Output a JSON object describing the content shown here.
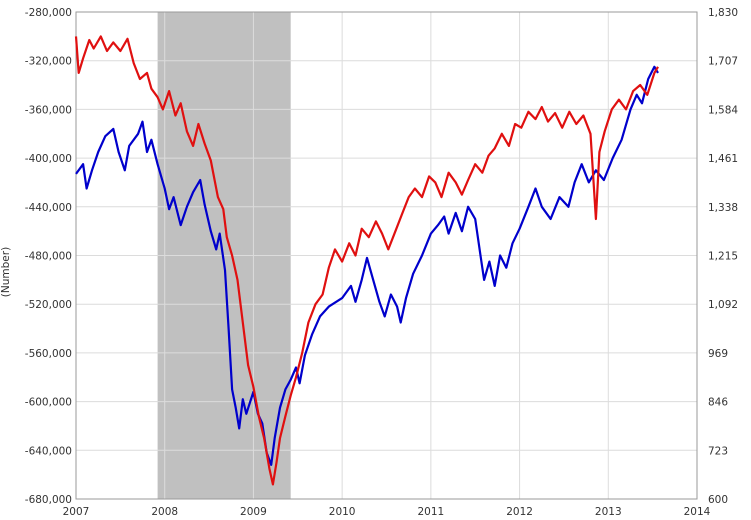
{
  "chart_data": {
    "type": "line",
    "title": "",
    "ylabel_left": "(Number)",
    "ylabel_right": "",
    "x_ticks": [
      "2007",
      "2008",
      "2009",
      "2010",
      "2011",
      "2012",
      "2013",
      "2014"
    ],
    "xlim": [
      2007,
      2014
    ],
    "y_left_ticks": [
      "-280,000",
      "-320,000",
      "-360,000",
      "-400,000",
      "-440,000",
      "-480,000",
      "-520,000",
      "-560,000",
      "-600,000",
      "-640,000",
      "-680,000"
    ],
    "ylim_left": [
      -680000,
      -280000
    ],
    "y_right_ticks": [
      "1,830",
      "1,707",
      "1,584",
      "1,461",
      "1,338",
      "1,215",
      "1,092",
      "969",
      "846",
      "723",
      "600"
    ],
    "ylim_right": [
      600,
      1830
    ],
    "grid": true,
    "recession_shading": {
      "start": 2007.92,
      "end": 2009.42,
      "color": "#c0c0c0"
    },
    "series": [
      {
        "color": "#0000cc",
        "axis": "left",
        "points": [
          [
            2007.0,
            -413000
          ],
          [
            2007.08,
            -405000
          ],
          [
            2007.12,
            -425000
          ],
          [
            2007.18,
            -410000
          ],
          [
            2007.25,
            -395000
          ],
          [
            2007.33,
            -382000
          ],
          [
            2007.42,
            -376000
          ],
          [
            2007.48,
            -395000
          ],
          [
            2007.55,
            -410000
          ],
          [
            2007.6,
            -390000
          ],
          [
            2007.7,
            -380000
          ],
          [
            2007.75,
            -370000
          ],
          [
            2007.8,
            -395000
          ],
          [
            2007.85,
            -385000
          ],
          [
            2007.92,
            -405000
          ],
          [
            2008.0,
            -425000
          ],
          [
            2008.05,
            -442000
          ],
          [
            2008.1,
            -432000
          ],
          [
            2008.18,
            -455000
          ],
          [
            2008.25,
            -440000
          ],
          [
            2008.32,
            -428000
          ],
          [
            2008.4,
            -418000
          ],
          [
            2008.45,
            -438000
          ],
          [
            2008.52,
            -460000
          ],
          [
            2008.58,
            -475000
          ],
          [
            2008.62,
            -462000
          ],
          [
            2008.68,
            -492000
          ],
          [
            2008.72,
            -540000
          ],
          [
            2008.76,
            -590000
          ],
          [
            2008.8,
            -605000
          ],
          [
            2008.84,
            -622000
          ],
          [
            2008.88,
            -598000
          ],
          [
            2008.92,
            -610000
          ],
          [
            2009.0,
            -592000
          ],
          [
            2009.05,
            -610000
          ],
          [
            2009.1,
            -618000
          ],
          [
            2009.15,
            -642000
          ],
          [
            2009.2,
            -652000
          ],
          [
            2009.24,
            -630000
          ],
          [
            2009.3,
            -605000
          ],
          [
            2009.36,
            -590000
          ],
          [
            2009.42,
            -582000
          ],
          [
            2009.48,
            -572000
          ],
          [
            2009.52,
            -585000
          ],
          [
            2009.58,
            -562000
          ],
          [
            2009.66,
            -545000
          ],
          [
            2009.75,
            -530000
          ],
          [
            2009.85,
            -522000
          ],
          [
            2010.0,
            -515000
          ],
          [
            2010.1,
            -505000
          ],
          [
            2010.15,
            -518000
          ],
          [
            2010.22,
            -500000
          ],
          [
            2010.28,
            -482000
          ],
          [
            2010.35,
            -500000
          ],
          [
            2010.42,
            -518000
          ],
          [
            2010.48,
            -530000
          ],
          [
            2010.55,
            -512000
          ],
          [
            2010.62,
            -522000
          ],
          [
            2010.66,
            -535000
          ],
          [
            2010.72,
            -515000
          ],
          [
            2010.8,
            -495000
          ],
          [
            2010.9,
            -480000
          ],
          [
            2011.0,
            -462000
          ],
          [
            2011.08,
            -455000
          ],
          [
            2011.15,
            -448000
          ],
          [
            2011.2,
            -462000
          ],
          [
            2011.28,
            -445000
          ],
          [
            2011.35,
            -460000
          ],
          [
            2011.42,
            -440000
          ],
          [
            2011.5,
            -450000
          ],
          [
            2011.56,
            -480000
          ],
          [
            2011.6,
            -500000
          ],
          [
            2011.66,
            -485000
          ],
          [
            2011.72,
            -505000
          ],
          [
            2011.78,
            -480000
          ],
          [
            2011.85,
            -490000
          ],
          [
            2011.92,
            -470000
          ],
          [
            2012.0,
            -458000
          ],
          [
            2012.1,
            -440000
          ],
          [
            2012.18,
            -425000
          ],
          [
            2012.25,
            -440000
          ],
          [
            2012.35,
            -450000
          ],
          [
            2012.45,
            -432000
          ],
          [
            2012.55,
            -440000
          ],
          [
            2012.62,
            -420000
          ],
          [
            2012.7,
            -405000
          ],
          [
            2012.78,
            -420000
          ],
          [
            2012.86,
            -410000
          ],
          [
            2012.95,
            -418000
          ],
          [
            2013.05,
            -400000
          ],
          [
            2013.15,
            -385000
          ],
          [
            2013.25,
            -360000
          ],
          [
            2013.32,
            -348000
          ],
          [
            2013.38,
            -355000
          ],
          [
            2013.45,
            -335000
          ],
          [
            2013.52,
            -325000
          ],
          [
            2013.56,
            -330000
          ]
        ]
      },
      {
        "color": "#e01010",
        "axis": "left",
        "points": [
          [
            2007.0,
            -300000
          ],
          [
            2007.03,
            -330000
          ],
          [
            2007.08,
            -318000
          ],
          [
            2007.15,
            -303000
          ],
          [
            2007.2,
            -310000
          ],
          [
            2007.28,
            -300000
          ],
          [
            2007.35,
            -312000
          ],
          [
            2007.42,
            -305000
          ],
          [
            2007.5,
            -312000
          ],
          [
            2007.58,
            -302000
          ],
          [
            2007.65,
            -322000
          ],
          [
            2007.72,
            -335000
          ],
          [
            2007.8,
            -330000
          ],
          [
            2007.85,
            -343000
          ],
          [
            2007.92,
            -350000
          ],
          [
            2007.98,
            -360000
          ],
          [
            2008.05,
            -345000
          ],
          [
            2008.12,
            -365000
          ],
          [
            2008.18,
            -355000
          ],
          [
            2008.25,
            -378000
          ],
          [
            2008.32,
            -390000
          ],
          [
            2008.38,
            -372000
          ],
          [
            2008.45,
            -388000
          ],
          [
            2008.52,
            -402000
          ],
          [
            2008.6,
            -432000
          ],
          [
            2008.66,
            -442000
          ],
          [
            2008.7,
            -465000
          ],
          [
            2008.76,
            -480000
          ],
          [
            2008.82,
            -500000
          ],
          [
            2008.88,
            -535000
          ],
          [
            2008.94,
            -570000
          ],
          [
            2009.0,
            -588000
          ],
          [
            2009.06,
            -612000
          ],
          [
            2009.12,
            -630000
          ],
          [
            2009.18,
            -655000
          ],
          [
            2009.22,
            -668000
          ],
          [
            2009.26,
            -650000
          ],
          [
            2009.3,
            -630000
          ],
          [
            2009.36,
            -612000
          ],
          [
            2009.42,
            -595000
          ],
          [
            2009.48,
            -580000
          ],
          [
            2009.55,
            -560000
          ],
          [
            2009.62,
            -535000
          ],
          [
            2009.7,
            -520000
          ],
          [
            2009.78,
            -512000
          ],
          [
            2009.85,
            -490000
          ],
          [
            2009.92,
            -475000
          ],
          [
            2010.0,
            -485000
          ],
          [
            2010.08,
            -470000
          ],
          [
            2010.15,
            -480000
          ],
          [
            2010.22,
            -458000
          ],
          [
            2010.3,
            -465000
          ],
          [
            2010.38,
            -452000
          ],
          [
            2010.45,
            -462000
          ],
          [
            2010.52,
            -475000
          ],
          [
            2010.6,
            -460000
          ],
          [
            2010.68,
            -445000
          ],
          [
            2010.75,
            -432000
          ],
          [
            2010.82,
            -425000
          ],
          [
            2010.9,
            -432000
          ],
          [
            2010.98,
            -415000
          ],
          [
            2011.05,
            -420000
          ],
          [
            2011.12,
            -432000
          ],
          [
            2011.2,
            -412000
          ],
          [
            2011.28,
            -420000
          ],
          [
            2011.35,
            -430000
          ],
          [
            2011.42,
            -418000
          ],
          [
            2011.5,
            -405000
          ],
          [
            2011.58,
            -412000
          ],
          [
            2011.65,
            -398000
          ],
          [
            2011.72,
            -392000
          ],
          [
            2011.8,
            -380000
          ],
          [
            2011.88,
            -390000
          ],
          [
            2011.95,
            -372000
          ],
          [
            2012.02,
            -375000
          ],
          [
            2012.1,
            -362000
          ],
          [
            2012.18,
            -368000
          ],
          [
            2012.25,
            -358000
          ],
          [
            2012.32,
            -370000
          ],
          [
            2012.4,
            -363000
          ],
          [
            2012.48,
            -375000
          ],
          [
            2012.56,
            -362000
          ],
          [
            2012.64,
            -372000
          ],
          [
            2012.72,
            -365000
          ],
          [
            2012.8,
            -380000
          ],
          [
            2012.86,
            -450000
          ],
          [
            2012.9,
            -395000
          ],
          [
            2012.96,
            -378000
          ],
          [
            2013.04,
            -360000
          ],
          [
            2013.12,
            -352000
          ],
          [
            2013.2,
            -360000
          ],
          [
            2013.28,
            -345000
          ],
          [
            2013.36,
            -340000
          ],
          [
            2013.44,
            -348000
          ],
          [
            2013.52,
            -330000
          ],
          [
            2013.56,
            -325000
          ]
        ]
      }
    ]
  }
}
